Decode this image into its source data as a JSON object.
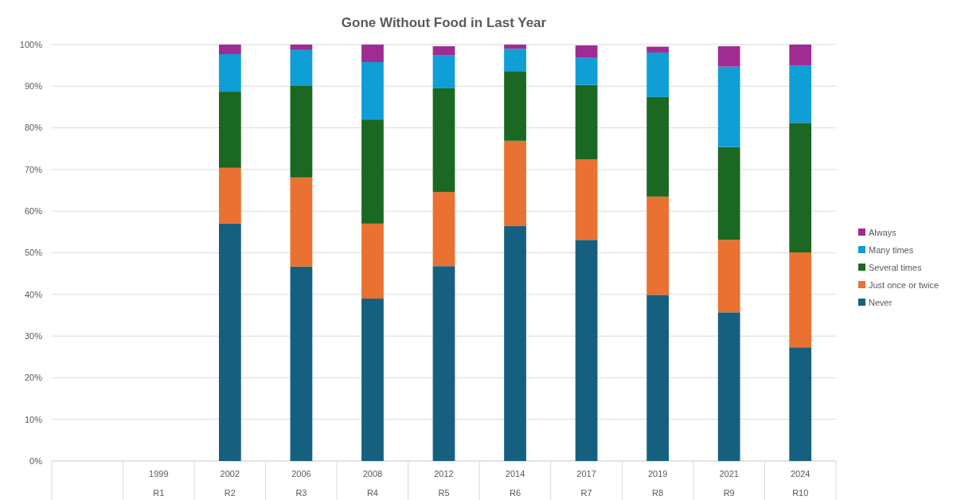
{
  "chart_data": {
    "type": "bar",
    "title": "Gone Without Food in Last Year",
    "stacked": true,
    "categories": [
      null,
      "1999\nR1",
      "2002\nR2",
      "2006\nR3",
      "2008\nR4",
      "2012\nR5",
      "2014\nR6",
      "2017\nR7",
      "2019\nR8",
      "2021\nR9",
      "2024\nR10"
    ],
    "series": [
      {
        "name": "Never",
        "color": "#16607f",
        "values": [
          null,
          null,
          57.0,
          46.7,
          39.0,
          46.8,
          56.4,
          53.1,
          39.9,
          35.7,
          27.3
        ]
      },
      {
        "name": "Just once or twice",
        "color": "#e97132",
        "values": [
          null,
          null,
          13.4,
          21.4,
          18.0,
          17.8,
          20.5,
          19.3,
          23.6,
          17.4,
          22.8
        ]
      },
      {
        "name": "Several times",
        "color": "#1b6823",
        "values": [
          null,
          null,
          18.3,
          22.1,
          25.0,
          24.9,
          16.6,
          17.9,
          23.9,
          22.3,
          31.1
        ]
      },
      {
        "name": "Many times",
        "color": "#0f9ed5",
        "values": [
          null,
          null,
          9.0,
          8.5,
          13.8,
          8.0,
          5.5,
          6.5,
          10.7,
          19.3,
          13.8
        ]
      },
      {
        "name": "Always",
        "color": "#a02b93",
        "values": [
          null,
          null,
          2.3,
          1.3,
          4.2,
          2.1,
          1.0,
          3.0,
          1.4,
          4.9,
          5.0
        ]
      }
    ],
    "ylim": [
      0,
      100
    ],
    "yticks": [
      {
        "value": 0,
        "label": "0%"
      },
      {
        "value": 10,
        "label": "10%"
      },
      {
        "value": 20,
        "label": "20%"
      },
      {
        "value": 30,
        "label": "30%"
      },
      {
        "value": 40,
        "label": "40%"
      },
      {
        "value": 50,
        "label": "50%"
      },
      {
        "value": 60,
        "label": "60%"
      },
      {
        "value": 70,
        "label": "70%"
      },
      {
        "value": 80,
        "label": "80%"
      },
      {
        "value": 90,
        "label": "90%"
      },
      {
        "value": 100,
        "label": "100%"
      }
    ],
    "grid": "y",
    "legend": "right"
  }
}
